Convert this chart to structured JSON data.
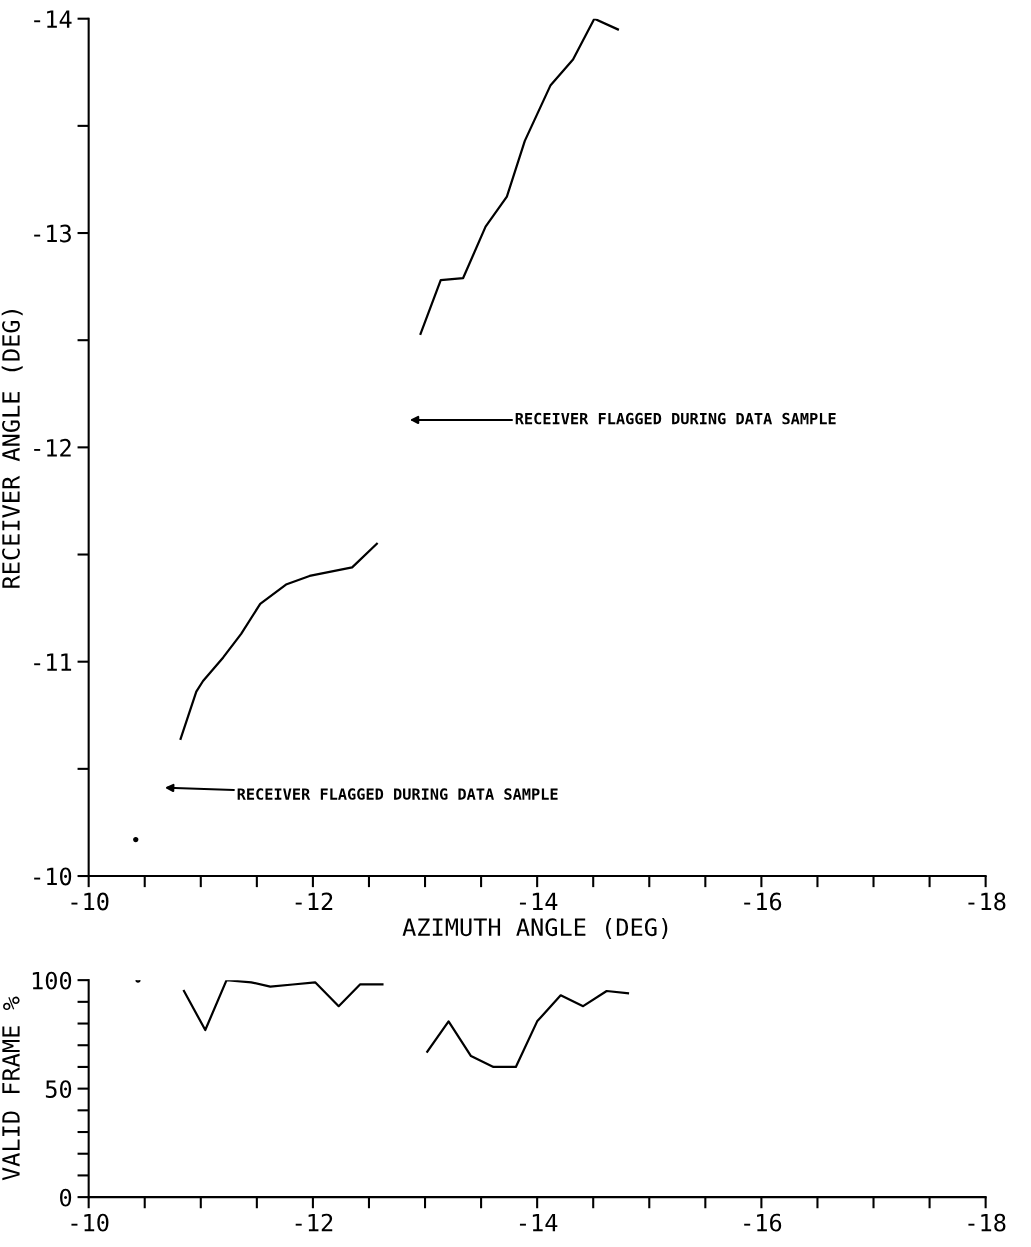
{
  "chart_data": [
    {
      "type": "line",
      "xlabel": "AZIMUTH ANGLE (DEG)",
      "ylabel": "RECEIVER ANGLE (DEG)",
      "xlim": [
        -10,
        -18
      ],
      "ylim": [
        -10,
        -14
      ],
      "xticks": [
        -10,
        {
          "value": -10.5,
          "label": null
        },
        {
          "value": -11,
          "label": null
        },
        {
          "value": -11.5,
          "label": null
        },
        -12,
        {
          "value": -12.5,
          "label": null
        },
        {
          "value": -13,
          "label": null
        },
        {
          "value": -13.5,
          "label": null
        },
        -14,
        {
          "value": -14.5,
          "label": null
        },
        {
          "value": -15,
          "label": null
        },
        {
          "value": -15.5,
          "label": null
        },
        -16,
        {
          "value": -16.5,
          "label": null
        },
        {
          "value": -17,
          "label": null
        },
        {
          "value": -17.5,
          "label": null
        },
        -18
      ],
      "yticks": [
        -10,
        {
          "value": -10.5,
          "label": null
        },
        -11,
        {
          "value": -11.5,
          "label": null
        },
        -12,
        {
          "value": -12.5,
          "label": null
        },
        -13,
        {
          "value": -13.5,
          "label": null
        },
        -14
      ],
      "grid": false,
      "legend": false,
      "series": [
        {
          "type": "scatter",
          "color": "#000000",
          "x": [
            -10.42
          ],
          "values": [
            -10.17
          ]
        },
        {
          "color": "#000000",
          "x": [
            -10.82,
            -10.96,
            -11.02,
            -11.2,
            -11.36,
            -11.53,
            -11.76,
            -11.97,
            -12.16,
            -12.35,
            -12.57
          ],
          "values": [
            -10.64,
            -10.86,
            -10.91,
            -11.02,
            -11.13,
            -11.27,
            -11.36,
            -11.4,
            -11.42,
            -11.44,
            -11.55
          ]
        },
        {
          "color": "#000000",
          "x": [
            -12.96,
            -13.14,
            -13.34,
            -13.54,
            -13.73,
            -13.89,
            -14.12,
            -14.32,
            -14.51,
            -14.72
          ],
          "values": [
            -12.53,
            -12.78,
            -12.79,
            -13.03,
            -13.17,
            -13.43,
            -13.69,
            -13.81,
            -14.0,
            -13.95
          ]
        }
      ],
      "annotations": [
        "RECEIVER FLAGGED DURING DATA SAMPLE",
        "RECEIVER FLAGGED DURING DATA SAMPLE"
      ]
    },
    {
      "type": "line",
      "ylabel": "VALID FRAME %",
      "xlim": [
        -10,
        -18
      ],
      "ylim": [
        0,
        100
      ],
      "xticks": [
        -10,
        {
          "value": -10.5,
          "label": null
        },
        {
          "value": -11,
          "label": null
        },
        {
          "value": -11.5,
          "label": null
        },
        -12,
        {
          "value": -12.5,
          "label": null
        },
        {
          "value": -13,
          "label": null
        },
        {
          "value": -13.5,
          "label": null
        },
        -14,
        {
          "value": -14.5,
          "label": null
        },
        {
          "value": -15,
          "label": null
        },
        {
          "value": -15.5,
          "label": null
        },
        -16,
        {
          "value": -16.5,
          "label": null
        },
        {
          "value": -17,
          "label": null
        },
        {
          "value": -17.5,
          "label": null
        },
        -18
      ],
      "yticks": [
        0,
        {
          "value": 10,
          "label": null
        },
        {
          "value": 20,
          "label": null
        },
        {
          "value": 30,
          "label": null
        },
        {
          "value": 40,
          "label": null
        },
        50,
        {
          "value": 60,
          "label": null
        },
        {
          "value": 70,
          "label": null
        },
        {
          "value": 80,
          "label": null
        },
        {
          "value": 90,
          "label": null
        },
        100
      ],
      "grid": false,
      "legend": false,
      "series": [
        {
          "type": "scatter",
          "color": "#000000",
          "x": [
            -10.44
          ],
          "values": [
            100
          ]
        },
        {
          "color": "#000000",
          "x": [
            -10.85,
            -11.04,
            -11.23,
            -11.45,
            -11.62,
            -11.82,
            -12.02,
            -12.23,
            -12.42,
            -12.62
          ],
          "values": [
            95,
            77,
            100,
            99,
            97,
            98,
            99,
            88,
            98,
            98
          ]
        },
        {
          "color": "#000000",
          "x": [
            -13.02,
            -13.21,
            -13.41,
            -13.61,
            -13.81,
            -14.0,
            -14.21,
            -14.41,
            -14.62,
            -14.81
          ],
          "values": [
            67,
            81,
            65,
            60,
            60,
            81,
            93,
            88,
            95,
            94
          ]
        }
      ]
    }
  ]
}
